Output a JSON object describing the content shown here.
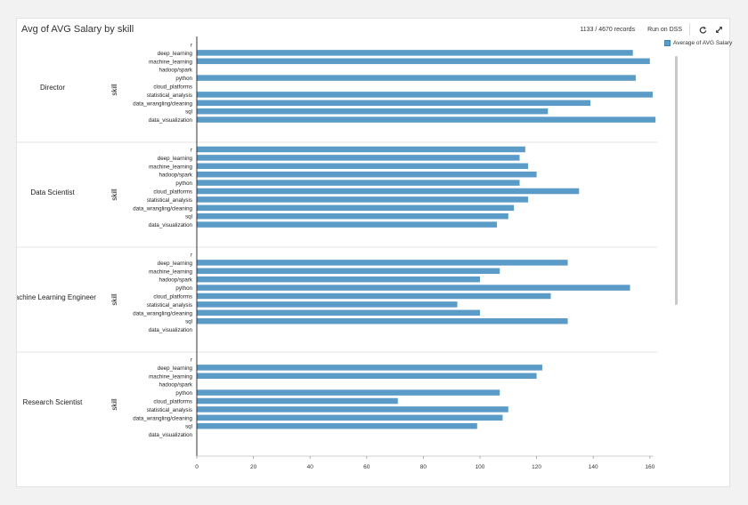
{
  "header": {
    "title": "Avg of AVG Salary by skill",
    "records": "1133 / 4670 records",
    "run_label": "Run on DSS",
    "refresh_icon": "refresh-icon",
    "expand_icon": "expand-icon"
  },
  "legend": {
    "label": "Average of AVG Salary",
    "color": "#5b9bc8"
  },
  "chart_data": {
    "type": "bar",
    "orientation": "horizontal",
    "title": "Avg of AVG Salary by skill",
    "facet_by": "job title",
    "ylabel": "skill",
    "xlabel": "",
    "xlim": [
      0,
      160
    ],
    "xticks": [
      0,
      20,
      40,
      60,
      80,
      100,
      120,
      140,
      160
    ],
    "categories": [
      "r",
      "deep_learning",
      "machine_learning",
      "hadoop/spark",
      "python",
      "cloud_platforms",
      "statistical_analysis",
      "data_wrangling/cleaning",
      "sql",
      "data_visualization"
    ],
    "series": [
      {
        "name": "Average of AVG Salary",
        "color": "#5b9bc8"
      }
    ],
    "panels": [
      {
        "name": "Director",
        "values": [
          null,
          154,
          160,
          null,
          155,
          null,
          161,
          139,
          124,
          162
        ]
      },
      {
        "name": "Data Scientist",
        "values": [
          116,
          114,
          117,
          120,
          114,
          135,
          117,
          112,
          110,
          106
        ]
      },
      {
        "name": "Machine Learning Engineer",
        "values": [
          null,
          131,
          107,
          100,
          153,
          125,
          92,
          100,
          131,
          null
        ]
      },
      {
        "name": "Research Scientist",
        "values": [
          null,
          122,
          120,
          null,
          107,
          71,
          110,
          108,
          99,
          null
        ]
      }
    ],
    "grid": false,
    "legend_position": "top-right"
  }
}
